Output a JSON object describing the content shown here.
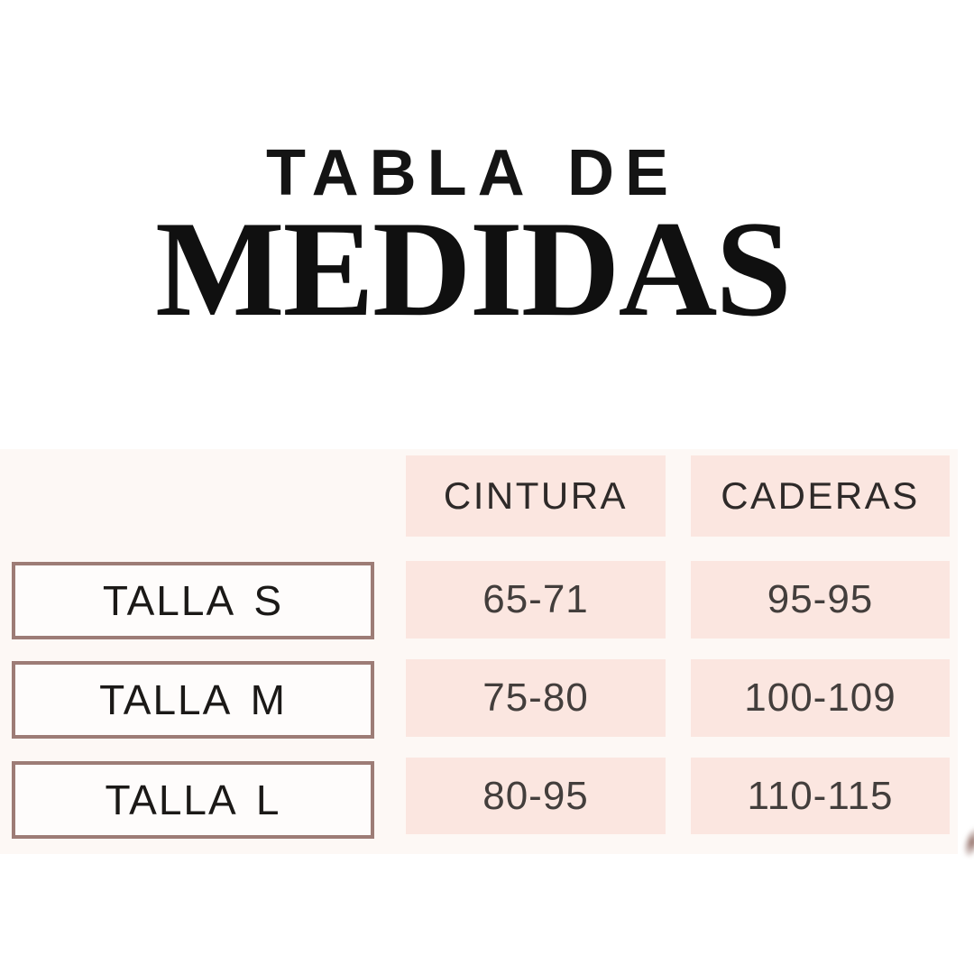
{
  "title": {
    "line1": "TABLA DE",
    "line2": "MEDIDAS"
  },
  "table": {
    "columns": [
      {
        "label": "CINTURA"
      },
      {
        "label": "CADERAS"
      }
    ],
    "rows": [
      {
        "size_label": "TALLA S",
        "cintura": "65-71",
        "caderas": "95-95"
      },
      {
        "size_label": "TALLA M",
        "cintura": "75-80",
        "caderas": "100-109"
      },
      {
        "size_label": "TALLA L",
        "cintura": "80-95",
        "caderas": "110-115"
      }
    ]
  },
  "colors": {
    "cell_pink": "#FBE6E0",
    "box_border_mauve": "#9D7C76",
    "box_fill": "#FEFCFB",
    "background_wash": "#FDF8F5",
    "title_text": "#141414",
    "table_text": "#433E3C"
  }
}
